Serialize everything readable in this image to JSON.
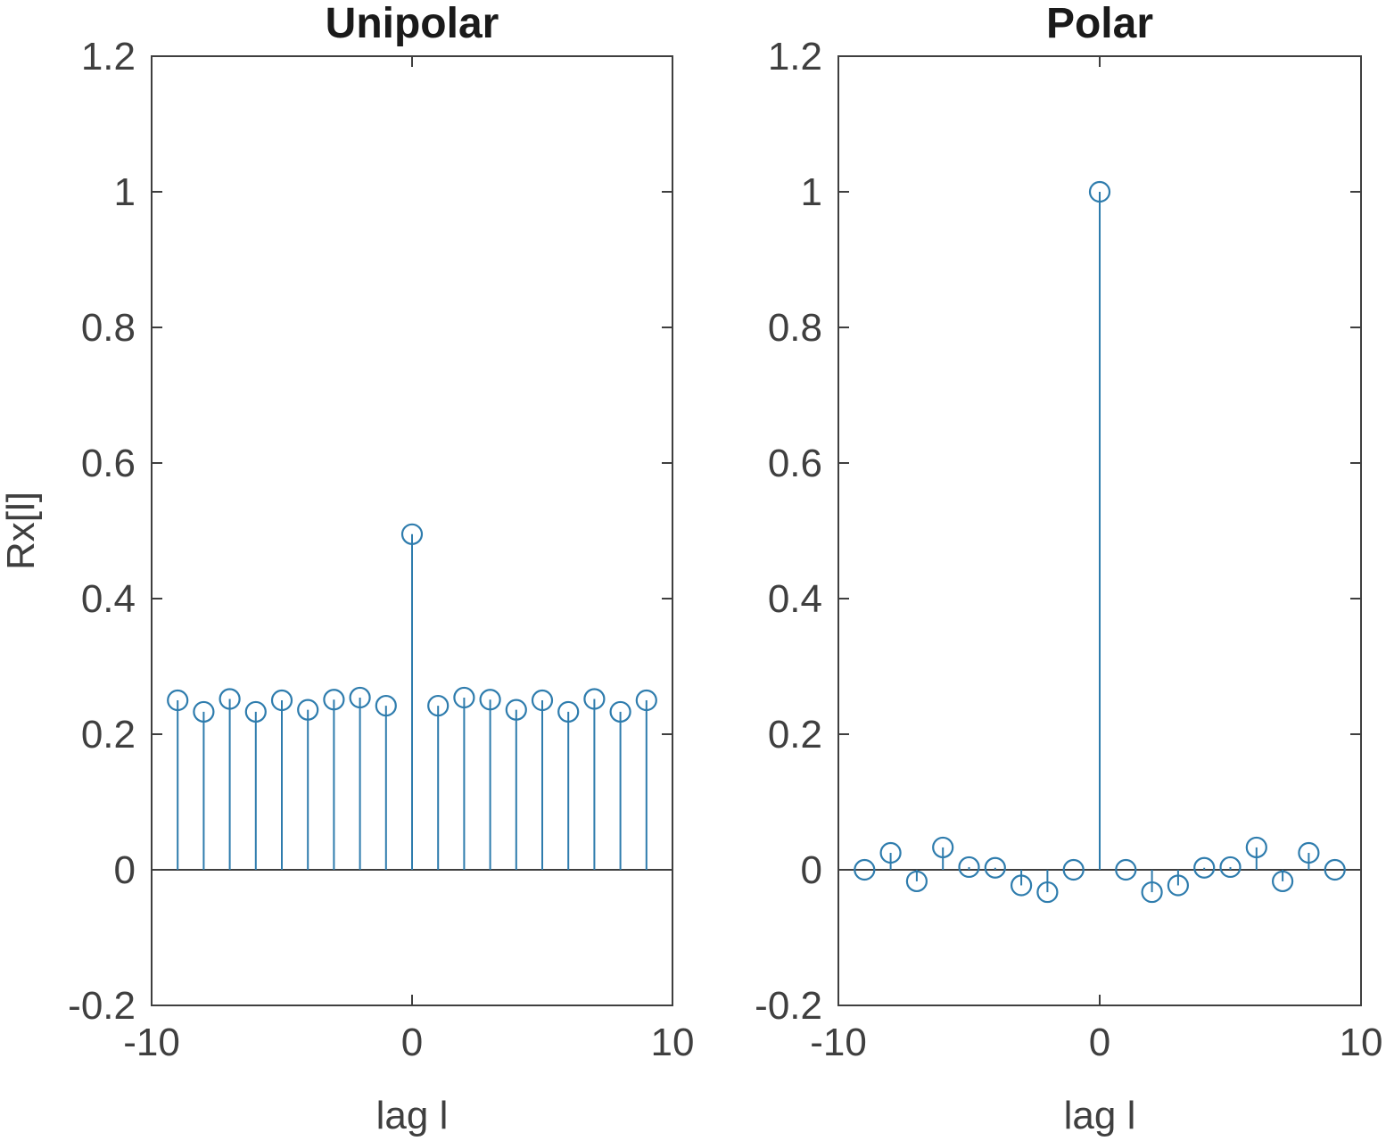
{
  "chart_data": [
    {
      "type": "stem",
      "title": "Unipolar",
      "xlabel": "lag l",
      "ylabel": "Rx[l]",
      "xlim": [
        -10,
        10
      ],
      "ylim": [
        -0.2,
        1.2
      ],
      "xticks": [
        "-10",
        "0",
        "10"
      ],
      "yticks": [
        "-0.2",
        "0",
        "0.2",
        "0.4",
        "0.6",
        "0.8",
        "1",
        "1.2"
      ],
      "color": "#2e7cad",
      "x": [
        -9,
        -8,
        -7,
        -6,
        -5,
        -4,
        -3,
        -2,
        -1,
        0,
        1,
        2,
        3,
        4,
        5,
        6,
        7,
        8,
        9
      ],
      "values": [
        0.25,
        0.233,
        0.252,
        0.233,
        0.25,
        0.236,
        0.251,
        0.254,
        0.242,
        0.495,
        0.242,
        0.254,
        0.251,
        0.236,
        0.25,
        0.233,
        0.252,
        0.233,
        0.25
      ]
    },
    {
      "type": "stem",
      "title": "Polar",
      "xlabel": "lag l",
      "ylabel": "",
      "xlim": [
        -10,
        10
      ],
      "ylim": [
        -0.2,
        1.2
      ],
      "xticks": [
        "-10",
        "0",
        "10"
      ],
      "yticks": [
        "-0.2",
        "0",
        "0.2",
        "0.4",
        "0.6",
        "0.8",
        "1",
        "1.2"
      ],
      "color": "#2e7cad",
      "x": [
        -9,
        -8,
        -7,
        -6,
        -5,
        -4,
        -3,
        -2,
        -1,
        0,
        1,
        2,
        3,
        4,
        5,
        6,
        7,
        8,
        9
      ],
      "values": [
        0.0,
        0.025,
        -0.017,
        0.033,
        0.004,
        0.003,
        -0.023,
        -0.033,
        0.0,
        1.0,
        0.0,
        -0.033,
        -0.023,
        0.003,
        0.004,
        0.033,
        -0.017,
        0.025,
        0.0
      ]
    }
  ]
}
